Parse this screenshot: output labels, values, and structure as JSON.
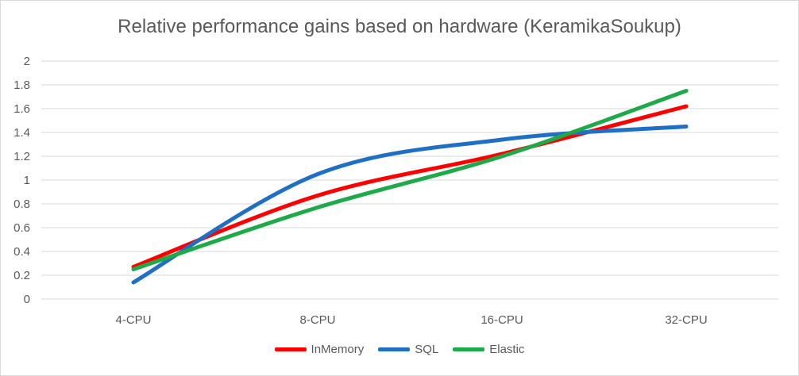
{
  "chart_data": {
    "type": "line",
    "title": "Relative performance gains based on hardware (KeramikaSoukup)",
    "categories": [
      "4-CPU",
      "8-CPU",
      "16-CPU",
      "32-CPU"
    ],
    "ylim": [
      0,
      2
    ],
    "yticks": [
      "0",
      "0.2",
      "0.4",
      "0.6",
      "0.8",
      "1",
      "1.2",
      "1.4",
      "1.6",
      "1.8",
      "2"
    ],
    "grid": true,
    "smooth": true,
    "legend_position": "bottom",
    "series": [
      {
        "name": "InMemory",
        "color": "#ff0000",
        "values": [
          0.27,
          0.87,
          1.22,
          1.62
        ]
      },
      {
        "name": "SQL",
        "color": "#1f6fc5",
        "values": [
          0.14,
          1.05,
          1.34,
          1.45
        ]
      },
      {
        "name": "Elastic",
        "color": "#1faa4a",
        "values": [
          0.25,
          0.77,
          1.2,
          1.75
        ]
      }
    ]
  }
}
